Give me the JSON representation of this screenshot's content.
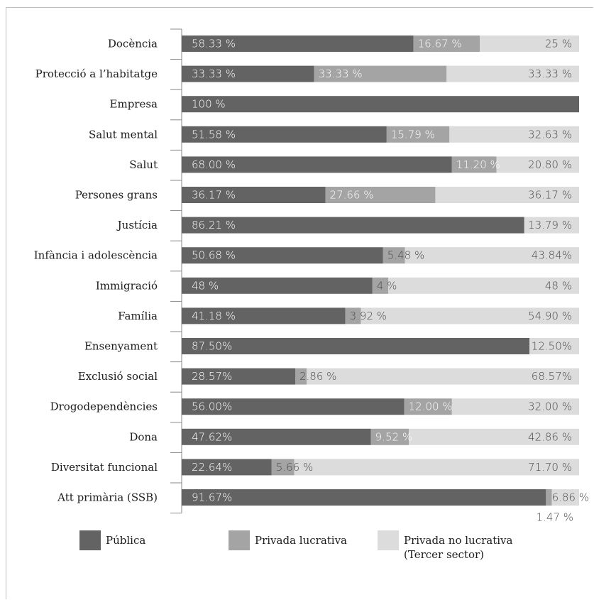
{
  "colors": {
    "publica": "#636363",
    "privada_lucrativa": "#a4a4a4",
    "privada_no_lucrativa": "#dcdcdc"
  },
  "chart_data": {
    "type": "bar",
    "orientation": "horizontal",
    "stacked": true,
    "percent": true,
    "title": "",
    "xlim": [
      0,
      100
    ],
    "categories": [
      "Docència",
      "Protecció a l’habitatge",
      "Empresa",
      "Salut mental",
      "Salut",
      "Persones grans",
      "Justícia",
      "Infància i adolescència",
      "Immigració",
      "Família",
      "Ensenyament",
      "Exclusió social",
      "Drogodependències",
      "Dona",
      "Diversitat funcional",
      "Att primària (SSB)"
    ],
    "series": [
      {
        "name": "Pública",
        "color": "#636363",
        "values": [
          58.33,
          33.33,
          100,
          51.58,
          68.0,
          36.17,
          86.21,
          50.68,
          48,
          41.18,
          87.5,
          28.57,
          56.0,
          47.62,
          22.64,
          91.67
        ],
        "labels": [
          "58.33 %",
          "33.33 %",
          "100 %",
          "51.58 %",
          "68.00 %",
          "36.17 %",
          "86.21 %",
          "50.68 %",
          "48 %",
          "41.18 %",
          "87.50%",
          "28.57%",
          "56.00%",
          "47.62%",
          "22.64%",
          "91.67%"
        ]
      },
      {
        "name": "Privada lucrativa",
        "color": "#a4a4a4",
        "values": [
          16.67,
          33.33,
          0,
          15.79,
          11.2,
          27.66,
          0,
          5.48,
          4,
          3.92,
          0,
          2.86,
          12.0,
          9.52,
          5.66,
          1.47
        ],
        "labels": [
          "16.67 %",
          "33.33 %",
          "",
          "15.79 %",
          "11.20 %",
          "27.66 %",
          "",
          "5.48 %",
          "4 %",
          "3.92 %",
          "",
          "2.86 %",
          "12.00 %",
          "9.52 %",
          "5.66 %",
          "1.47 %"
        ]
      },
      {
        "name": "Privada no lucrativa (Tercer sector)",
        "color": "#dcdcdc",
        "values": [
          25,
          33.33,
          0,
          32.63,
          20.8,
          36.17,
          13.79,
          43.84,
          48,
          54.9,
          12.5,
          68.57,
          32.0,
          42.86,
          71.7,
          6.86
        ],
        "labels": [
          "25 %",
          "33.33 %",
          "",
          "32.63 %",
          "20.80 %",
          "36.17 %",
          "13.79 %",
          "43.84%",
          "48 %",
          "54.90 %",
          "12.50%",
          "68.57%",
          "32.00 %",
          "42.86 %",
          "71.70 %",
          "6.86 %"
        ]
      }
    ],
    "legend": {
      "position": "bottom",
      "items": [
        {
          "label": "Pública",
          "color": "#636363"
        },
        {
          "label": "Privada lucrativa",
          "color": "#a4a4a4"
        },
        {
          "label_line1": "Privada no lucrativa",
          "label_line2": "(Tercer sector)",
          "color": "#dcdcdc"
        }
      ]
    }
  }
}
